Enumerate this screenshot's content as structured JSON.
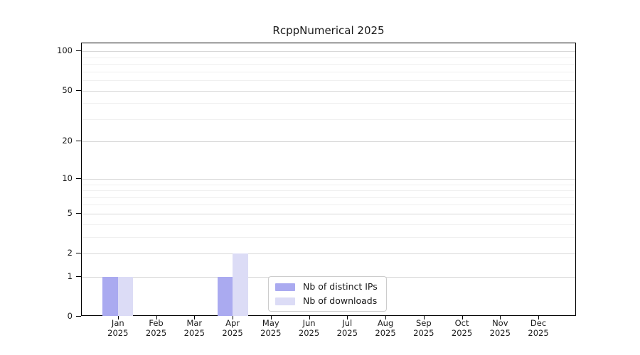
{
  "chart_data": {
    "type": "bar",
    "title": "RcppNumerical 2025",
    "categories": [
      "Jan",
      "Feb",
      "Mar",
      "Apr",
      "May",
      "Jun",
      "Jul",
      "Aug",
      "Sep",
      "Oct",
      "Nov",
      "Dec"
    ],
    "tick_year": "2025",
    "series": [
      {
        "name": "Nb of distinct IPs",
        "color": "#aaaaf0",
        "values": [
          1,
          0,
          0,
          1,
          0,
          0,
          0,
          0,
          0,
          0,
          0,
          0
        ]
      },
      {
        "name": "Nb of downloads",
        "color": "#dcdcf6",
        "values": [
          1,
          0,
          0,
          2,
          0,
          0,
          0,
          0,
          0,
          0,
          0,
          0
        ]
      }
    ],
    "y_axis": {
      "scale": "log1p",
      "ylim": [
        0,
        115
      ],
      "major_ticks": [
        0,
        1,
        2,
        5,
        10,
        20,
        50,
        100
      ],
      "minor_gridlines": [
        3,
        4,
        6,
        7,
        8,
        9,
        30,
        40,
        60,
        70,
        80,
        90
      ]
    },
    "x_axis": {
      "label_lines": 2
    },
    "legend": {
      "position": "lower center"
    },
    "grid": true,
    "colors": {
      "major_grid": "#d8d8d8",
      "minor_grid": "#f0f0f0",
      "axis": "#000000",
      "legend_border": "#cccccc",
      "background": "#ffffff"
    }
  }
}
